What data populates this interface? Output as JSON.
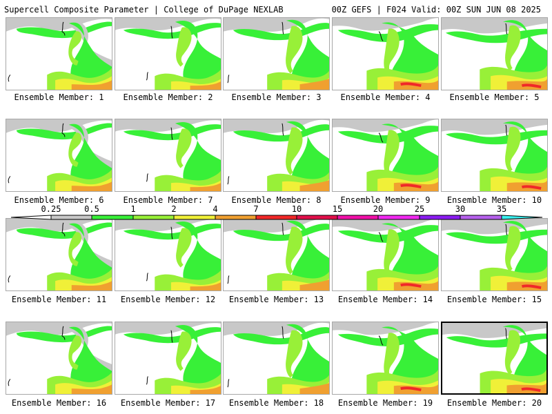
{
  "header": {
    "left_title": "Supercell Composite Parameter | College of DuPage NEXLAB",
    "right_title": "00Z GEFS | F024 Valid: 00Z SUN JUN 08 2025"
  },
  "members": [
    "Ensemble Member: 1",
    "Ensemble Member: 2",
    "Ensemble Member: 3",
    "Ensemble Member: 4",
    "Ensemble Member: 5",
    "Ensemble Member: 6",
    "Ensemble Member: 7",
    "Ensemble Member: 8",
    "Ensemble Member: 9",
    "Ensemble Member: 10",
    "Ensemble Member: 11",
    "Ensemble Member: 12",
    "Ensemble Member: 13",
    "Ensemble Member: 14",
    "Ensemble Member: 15",
    "Ensemble Member: 16",
    "Ensemble Member: 17",
    "Ensemble Member: 18",
    "Ensemble Member: 19",
    "Ensemble Member: 20"
  ],
  "selected_member_index": 19,
  "colorbar": {
    "ticks": [
      "0.25",
      "0.5",
      "1",
      "2",
      "4",
      "7",
      "10",
      "15",
      "20",
      "25",
      "30",
      "35"
    ],
    "colors": [
      "#c8c8c8",
      "#38f038",
      "#98f038",
      "#f0f038",
      "#f0a030",
      "#f02828",
      "#e0104a",
      "#f010a8",
      "#f028f0",
      "#8a1cf0",
      "#b660ec",
      "#38f0f0"
    ],
    "lower_triangle": "#ffffff",
    "upper_triangle": "#38f0f0"
  },
  "palette": {
    "background": "#ffffff",
    "panel_border": "#a7a7a7",
    "selected_border": "#000000",
    "label_text": "#000000"
  }
}
